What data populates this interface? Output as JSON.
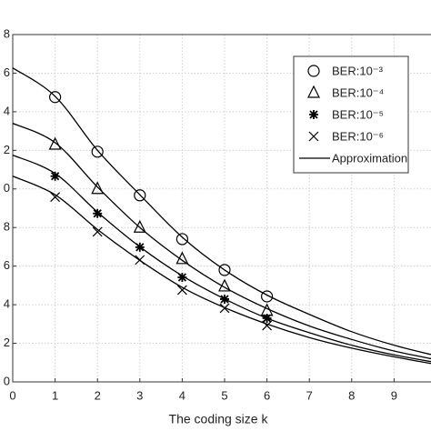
{
  "chart_data": {
    "type": "line",
    "xlabel": "The coding size k",
    "xlim": [
      0,
      10
    ],
    "ylim": [
      0,
      18
    ],
    "xticks": [
      0,
      1,
      2,
      3,
      4,
      5,
      6,
      7,
      8,
      9
    ],
    "yticks": [
      0,
      2,
      4,
      6,
      8,
      {
        "value": 10,
        "label": "0"
      },
      {
        "value": 12,
        "label": "2"
      },
      {
        "value": 14,
        "label": "4"
      },
      {
        "value": 16,
        "label": "6"
      },
      {
        "value": 18,
        "label": "8"
      }
    ],
    "grid": true,
    "legend": "upper right",
    "series": [
      {
        "name": "BER:10⁻³",
        "marker": "circle",
        "color": "#000000",
        "x": [
          1,
          2,
          3,
          4,
          5,
          6
        ],
        "values": [
          14.76,
          11.93,
          9.67,
          7.4,
          5.8,
          4.43
        ]
      },
      {
        "name": "BER:10⁻⁴",
        "marker": "triangle",
        "color": "#000000",
        "x": [
          1,
          2,
          3,
          4,
          5,
          6
        ],
        "values": [
          12.3,
          10.0,
          8.0,
          6.37,
          4.95,
          3.68
        ]
      },
      {
        "name": "BER:10⁻⁵",
        "marker": "star",
        "color": "#000000",
        "x": [
          1,
          2,
          3,
          4,
          5,
          6
        ],
        "values": [
          10.66,
          8.73,
          6.98,
          5.42,
          4.29,
          3.3
        ]
      },
      {
        "name": "BER:10⁻⁶",
        "marker": "x",
        "color": "#000000",
        "x": [
          1,
          2,
          3,
          4,
          5,
          6
        ],
        "values": [
          9.58,
          7.78,
          6.32,
          4.76,
          3.82,
          2.92
        ]
      }
    ],
    "approximation": {
      "name": "Approximation",
      "color": "#000000",
      "x": [
        0,
        1,
        2,
        3,
        4,
        5,
        6,
        7,
        8,
        9,
        10
      ],
      "curves": [
        [
          16.27,
          14.8,
          12.0,
          9.7,
          7.5,
          5.8,
          4.5,
          3.5,
          2.6,
          1.9,
          1.35
        ],
        [
          13.4,
          12.4,
          10.1,
          8.0,
          6.3,
          4.9,
          3.8,
          2.9,
          2.2,
          1.6,
          1.15
        ],
        [
          11.75,
          10.8,
          8.8,
          7.0,
          5.5,
          4.3,
          3.3,
          2.55,
          1.9,
          1.4,
          1.0
        ],
        [
          10.66,
          9.7,
          7.9,
          6.3,
          4.9,
          3.85,
          3.0,
          2.3,
          1.75,
          1.3,
          0.9
        ]
      ]
    }
  }
}
